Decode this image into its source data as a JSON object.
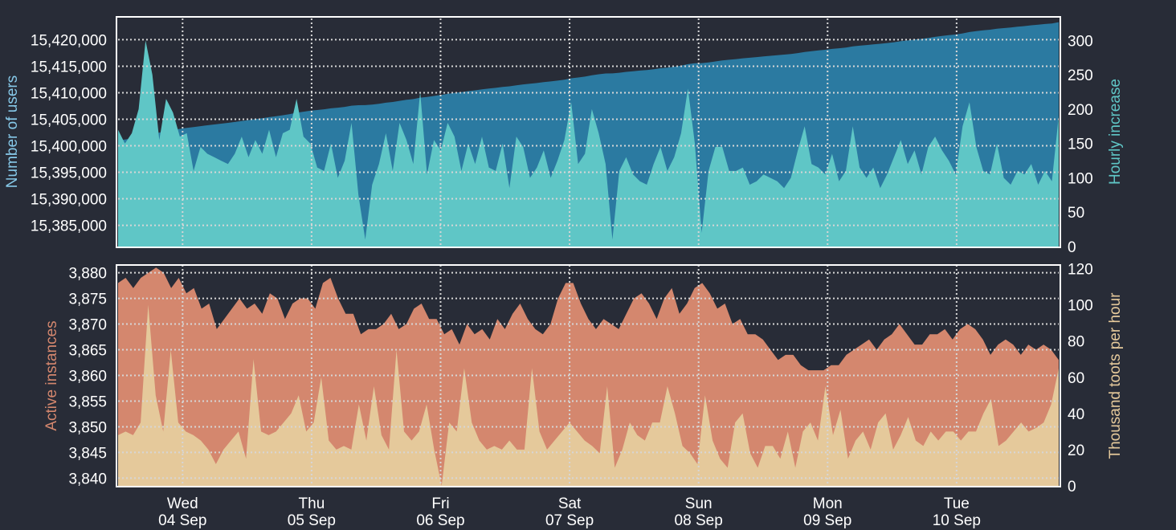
{
  "colors": {
    "background": "#282c37",
    "users_area": "#2b7aa1",
    "hourly_area": "#5fc6c6",
    "instances_area": "#d4876e",
    "toots_area": "#e5c99b",
    "users_label": "#86c8e8",
    "hourly_label": "#5fc6c6",
    "instances_label": "#d4876e",
    "toots_label": "#e5c99b",
    "tick_text": "#ffffff",
    "frame": "#ffffff",
    "grid": "#d6d6d6"
  },
  "x_axis": {
    "start": "2019-09-03 12:00",
    "end": "2019-09-10 19:00",
    "gridlines": "daily at 00:00",
    "ticks": [
      {
        "day": "Wed",
        "date": "04 Sep"
      },
      {
        "day": "Thu",
        "date": "05 Sep"
      },
      {
        "day": "Fri",
        "date": "06 Sep"
      },
      {
        "day": "Sat",
        "date": "07 Sep"
      },
      {
        "day": "Sun",
        "date": "08 Sep"
      },
      {
        "day": "Mon",
        "date": "09 Sep"
      },
      {
        "day": "Tue",
        "date": "10 Sep"
      }
    ]
  },
  "chart_data": [
    {
      "type": "area",
      "axes": {
        "left": {
          "label": "Number of users",
          "range": [
            15381000,
            15424000
          ],
          "ticks": [
            "15,385,000",
            "15,390,000",
            "15,395,000",
            "15,400,000",
            "15,405,000",
            "15,410,000",
            "15,415,000",
            "15,420,000"
          ]
        },
        "right": {
          "label": "Hourly increase",
          "range": [
            0,
            332
          ],
          "ticks": [
            "0",
            "50",
            "100",
            "150",
            "200",
            "250",
            "300"
          ]
        }
      },
      "grid": true,
      "series": [
        {
          "name": "Number of users",
          "axis": "left",
          "kind": "cumulative",
          "start_value": 15401000,
          "end_value": 15423300
        },
        {
          "name": "Hourly increase",
          "axis": "right",
          "values": [
            170,
            150,
            165,
            200,
            300,
            250,
            155,
            215,
            195,
            160,
            165,
            110,
            145,
            135,
            130,
            125,
            120,
            135,
            160,
            130,
            155,
            135,
            170,
            130,
            165,
            170,
            215,
            160,
            150,
            115,
            110,
            150,
            100,
            125,
            180,
            75,
            10,
            90,
            120,
            165,
            110,
            180,
            155,
            120,
            225,
            105,
            155,
            140,
            180,
            160,
            110,
            150,
            120,
            160,
            115,
            110,
            150,
            85,
            160,
            145,
            100,
            115,
            140,
            100,
            125,
            155,
            210,
            120,
            135,
            200,
            165,
            120,
            10,
            110,
            130,
            105,
            95,
            90,
            120,
            145,
            110,
            130,
            165,
            230,
            150,
            20,
            110,
            145,
            145,
            110,
            110,
            115,
            90,
            95,
            105,
            100,
            95,
            85,
            100,
            140,
            175,
            120,
            115,
            105,
            135,
            95,
            110,
            175,
            115,
            100,
            115,
            85,
            105,
            130,
            155,
            120,
            140,
            105,
            145,
            160,
            140,
            125,
            105,
            175,
            210,
            145,
            110,
            105,
            150,
            100,
            90,
            110,
            105,
            120,
            90,
            110,
            95,
            190
          ]
        }
      ]
    },
    {
      "type": "area",
      "axes": {
        "left": {
          "label": "Active instances",
          "range": [
            3838.5,
            3881.5
          ],
          "ticks": [
            "3,840",
            "3,845",
            "3,850",
            "3,855",
            "3,860",
            "3,865",
            "3,870",
            "3,875",
            "3,880"
          ]
        },
        "right": {
          "label": "Thousand toots per hour",
          "range": [
            0,
            122
          ],
          "ticks": [
            "0",
            "20",
            "40",
            "60",
            "80",
            "100",
            "120"
          ]
        }
      },
      "grid": true,
      "series": [
        {
          "name": "Active instances",
          "axis": "left",
          "values": [
            3878,
            3879,
            3877,
            3879,
            3880,
            3881,
            3880,
            3877,
            3879,
            3876,
            3877,
            3873,
            3874,
            3869,
            3871,
            3873,
            3875,
            3873,
            3874,
            3872,
            3876,
            3875,
            3871,
            3874,
            3875,
            3875,
            3873,
            3878,
            3879,
            3875,
            3872,
            3872,
            3868,
            3869,
            3869,
            3870,
            3872,
            3869,
            3870,
            3873,
            3874,
            3871,
            3871,
            3868,
            3869,
            3866,
            3870,
            3868,
            3869,
            3867,
            3871,
            3869,
            3872,
            3874,
            3871,
            3869,
            3868,
            3870,
            3875,
            3878,
            3878,
            3874,
            3871,
            3869,
            3871,
            3870,
            3869,
            3872,
            3875,
            3876,
            3874,
            3871,
            3875,
            3877,
            3872,
            3874,
            3877,
            3878,
            3876,
            3873,
            3874,
            3870,
            3871,
            3868,
            3868,
            3867,
            3865,
            3863,
            3864,
            3864,
            3862,
            3861,
            3861,
            3861,
            3862,
            3862,
            3864,
            3865,
            3866,
            3867,
            3865,
            3867,
            3868,
            3870,
            3868,
            3866,
            3866,
            3868,
            3868,
            3869,
            3867,
            3869,
            3870,
            3869,
            3867,
            3864,
            3866,
            3867,
            3866,
            3864,
            3866,
            3865,
            3866,
            3865,
            3863
          ]
        },
        {
          "name": "Thousand toots per hour",
          "axis": "right",
          "values": [
            28,
            30,
            28,
            35,
            100,
            50,
            30,
            75,
            35,
            30,
            28,
            25,
            20,
            12,
            20,
            25,
            30,
            15,
            70,
            30,
            28,
            30,
            35,
            40,
            50,
            30,
            35,
            60,
            25,
            20,
            22,
            20,
            45,
            25,
            55,
            28,
            20,
            75,
            30,
            25,
            30,
            45,
            20,
            0,
            35,
            30,
            65,
            35,
            25,
            20,
            22,
            20,
            25,
            20,
            20,
            65,
            30,
            20,
            25,
            30,
            35,
            30,
            25,
            22,
            18,
            55,
            10,
            20,
            35,
            28,
            25,
            35,
            35,
            55,
            40,
            22,
            18,
            12,
            50,
            25,
            15,
            10,
            35,
            40,
            18,
            10,
            22,
            22,
            15,
            30,
            10,
            30,
            35,
            25,
            55,
            28,
            42,
            15,
            25,
            30,
            20,
            35,
            40,
            20,
            28,
            38,
            25,
            22,
            30,
            25,
            30,
            30,
            25,
            30,
            30,
            40,
            48,
            22,
            25,
            30,
            35,
            30,
            32,
            35,
            45,
            65
          ]
        }
      ]
    }
  ]
}
